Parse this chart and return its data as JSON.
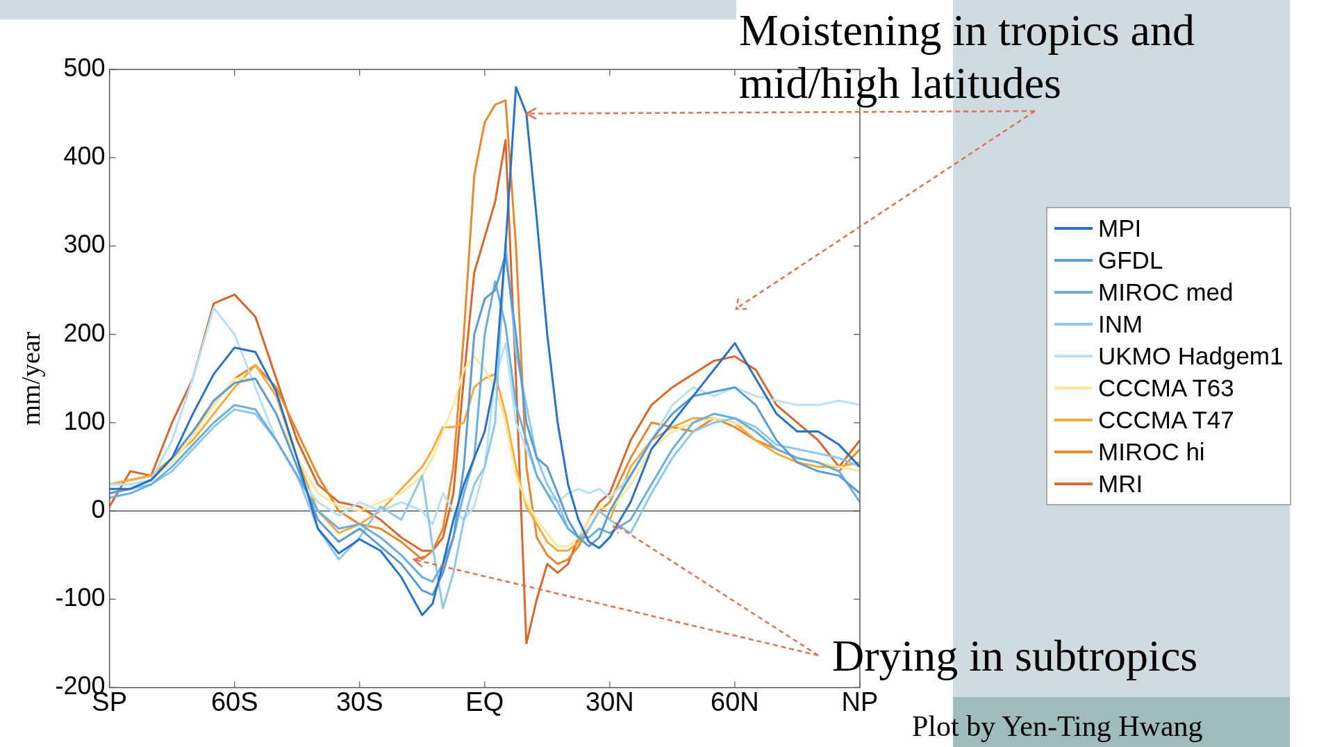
{
  "chart_data": {
    "type": "line",
    "ylabel": "mm/year",
    "annotations": [
      {
        "text": "Moistening in tropics and mid/high latitudes",
        "x": 10,
        "y": 450
      },
      {
        "text": "Drying in subtropics",
        "x": -17,
        "y": -55
      },
      "Plot by Yen-Ting Hwang"
    ],
    "x": [
      -90,
      -85,
      -80,
      -75,
      -70,
      -65,
      -60,
      -55,
      -50,
      -45,
      -40,
      -35,
      -30,
      -25,
      -20,
      -15,
      -12.5,
      -10,
      -7.5,
      -5,
      -2.5,
      0,
      2.5,
      5,
      7.5,
      10,
      12.5,
      15,
      17.5,
      20,
      22.5,
      25,
      27.5,
      30,
      35,
      40,
      45,
      50,
      55,
      60,
      65,
      70,
      75,
      80,
      85,
      90
    ],
    "xlim": [
      -90,
      90
    ],
    "xticks": [
      {
        "value": -90,
        "label": "SP"
      },
      {
        "value": -60,
        "label": "60S"
      },
      {
        "value": -30,
        "label": "30S"
      },
      {
        "value": 0,
        "label": "EQ"
      },
      {
        "value": 30,
        "label": "30N"
      },
      {
        "value": 60,
        "label": "60N"
      },
      {
        "value": 90,
        "label": "NP"
      }
    ],
    "ylim": [
      -200,
      500
    ],
    "yticks": [
      -200,
      -100,
      0,
      100,
      200,
      300,
      400,
      500
    ],
    "grid": false,
    "legend": "right",
    "marker": "none",
    "line_style": "solid",
    "ref_lines": [
      {
        "axis": "y",
        "value": 0,
        "color": "#000000"
      }
    ],
    "series": [
      {
        "name": "MPI",
        "color": "#2672c8",
        "values": [
          25,
          25,
          35,
          60,
          110,
          155,
          185,
          180,
          135,
          60,
          -20,
          -48,
          -32,
          -45,
          -75,
          -118,
          -105,
          -60,
          -10,
          30,
          60,
          90,
          150,
          300,
          480,
          450,
          330,
          200,
          100,
          30,
          -10,
          -35,
          -42,
          -30,
          10,
          70,
          100,
          130,
          160,
          190,
          150,
          110,
          90,
          90,
          75,
          50
        ]
      },
      {
        "name": "GFDL",
        "color": "#5b9bd5",
        "values": [
          20,
          25,
          35,
          60,
          90,
          125,
          145,
          150,
          110,
          50,
          -10,
          -35,
          -20,
          -40,
          -60,
          -90,
          -95,
          -70,
          -30,
          50,
          200,
          240,
          250,
          290,
          200,
          100,
          60,
          50,
          20,
          -10,
          -30,
          -40,
          -30,
          0,
          40,
          80,
          110,
          130,
          135,
          140,
          120,
          80,
          55,
          45,
          40,
          20
        ]
      },
      {
        "name": "MIROC med",
        "color": "#6aaee0",
        "values": [
          15,
          20,
          30,
          50,
          75,
          100,
          120,
          115,
          80,
          40,
          0,
          -20,
          -15,
          -30,
          -50,
          -75,
          -80,
          -60,
          -30,
          20,
          60,
          200,
          260,
          210,
          120,
          80,
          40,
          20,
          0,
          -20,
          -30,
          -30,
          -20,
          -25,
          -10,
          30,
          70,
          100,
          110,
          105,
          90,
          70,
          60,
          55,
          45,
          10
        ]
      },
      {
        "name": "INM",
        "color": "#8dc7ee",
        "values": [
          20,
          25,
          30,
          45,
          70,
          95,
          115,
          110,
          80,
          40,
          -20,
          -55,
          -30,
          5,
          -10,
          40,
          -40,
          -110,
          -70,
          -10,
          30,
          50,
          100,
          305,
          180,
          120,
          60,
          30,
          10,
          -20,
          -30,
          -20,
          0,
          -10,
          -25,
          20,
          60,
          90,
          100,
          105,
          95,
          75,
          70,
          65,
          60,
          50
        ]
      },
      {
        "name": "UKMO Hadgem1",
        "color": "#b7e0f5",
        "values": [
          30,
          30,
          35,
          80,
          150,
          230,
          200,
          140,
          80,
          40,
          10,
          -5,
          10,
          0,
          10,
          0,
          -15,
          20,
          0,
          -10,
          5,
          50,
          150,
          190,
          100,
          70,
          40,
          20,
          10,
          20,
          25,
          20,
          25,
          15,
          40,
          80,
          120,
          140,
          130,
          140,
          130,
          125,
          120,
          120,
          125,
          120
        ]
      },
      {
        "name": "CCCMA T63",
        "color": "#fbe79e",
        "values": [
          30,
          30,
          35,
          55,
          85,
          120,
          150,
          150,
          110,
          60,
          20,
          5,
          0,
          10,
          20,
          40,
          60,
          90,
          120,
          160,
          175,
          160,
          140,
          100,
          40,
          10,
          -10,
          -25,
          -40,
          -40,
          -30,
          -10,
          5,
          0,
          30,
          70,
          90,
          100,
          105,
          100,
          90,
          70,
          60,
          55,
          50,
          45
        ]
      },
      {
        "name": "CCCMA T47",
        "color": "#f9a93a",
        "values": [
          30,
          35,
          40,
          60,
          80,
          110,
          140,
          165,
          130,
          60,
          0,
          -25,
          -15,
          0,
          25,
          50,
          70,
          95,
          95,
          100,
          140,
          150,
          155,
          110,
          50,
          5,
          -15,
          -35,
          -45,
          -45,
          -35,
          -20,
          0,
          -10,
          50,
          80,
          95,
          105,
          105,
          100,
          80,
          65,
          55,
          50,
          50,
          55
        ]
      },
      {
        "name": "MIROC hi",
        "color": "#e8872b",
        "values": [
          30,
          35,
          40,
          60,
          90,
          120,
          150,
          165,
          140,
          90,
          40,
          0,
          -15,
          -20,
          -35,
          -55,
          -45,
          -20,
          50,
          200,
          380,
          440,
          460,
          465,
          300,
          50,
          -30,
          -50,
          -60,
          -55,
          -40,
          -20,
          0,
          10,
          60,
          100,
          95,
          90,
          105,
          95,
          80,
          70,
          60,
          55,
          45,
          70
        ]
      },
      {
        "name": "MRI",
        "color": "#d9662a",
        "values": [
          5,
          45,
          40,
          100,
          150,
          235,
          245,
          220,
          150,
          80,
          30,
          10,
          5,
          -10,
          -30,
          -45,
          -45,
          -30,
          20,
          150,
          270,
          310,
          350,
          420,
          150,
          -150,
          -100,
          -60,
          -70,
          -60,
          -30,
          -10,
          10,
          20,
          80,
          120,
          140,
          155,
          170,
          175,
          160,
          120,
          100,
          80,
          50,
          80
        ]
      }
    ]
  }
}
